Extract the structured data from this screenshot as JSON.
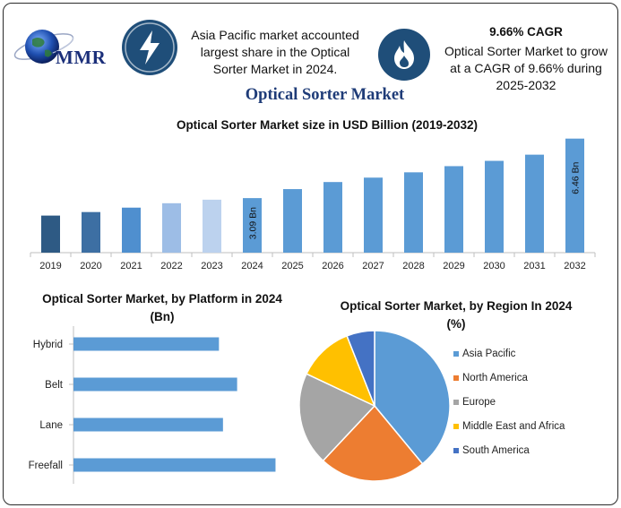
{
  "header": {
    "logo_text": "MMR",
    "share_text": "Asia Pacific market accounted largest share in the Optical Sorter Market in 2024.",
    "cagr_title": "9.66% CAGR",
    "cagr_text": "Optical Sorter Market to grow at a CAGR of 9.66% during 2025-2032",
    "icons": [
      "globe-icon",
      "lightning-icon",
      "flame-icon"
    ],
    "accent_color": "#1f4e79"
  },
  "main_title": "Optical Sorter Market",
  "chart_data": [
    {
      "type": "bar",
      "title": "Optical Sorter Market size in USD Billion (2019-2032)",
      "categories": [
        "2019",
        "2020",
        "2021",
        "2022",
        "2023",
        "2024",
        "2025",
        "2026",
        "2027",
        "2028",
        "2029",
        "2030",
        "2031",
        "2032"
      ],
      "values": [
        2.1,
        2.3,
        2.55,
        2.8,
        3.0,
        3.09,
        3.6,
        4.0,
        4.25,
        4.55,
        4.9,
        5.2,
        5.55,
        6.46
      ],
      "colors": [
        "#2e5a84",
        "#3d6fa3",
        "#4f8fcf",
        "#9dbde6",
        "#bcd2ee",
        "#5b9bd5",
        "#5b9bd5",
        "#5b9bd5",
        "#5b9bd5",
        "#5b9bd5",
        "#5b9bd5",
        "#5b9bd5",
        "#5b9bd5",
        "#5b9bd5"
      ],
      "data_labels": [
        {
          "index": 5,
          "text": "3.09 Bn"
        },
        {
          "index": 13,
          "text": "6.46 Bn"
        }
      ],
      "ylim": [
        0,
        6.8
      ],
      "grid": false
    },
    {
      "type": "bar",
      "orientation": "horizontal",
      "title": "Optical Sorter Market, by Platform in 2024 (Bn)",
      "categories": [
        "Hybrid",
        "Belt",
        "Lane",
        "Freefall"
      ],
      "values": [
        0.72,
        0.81,
        0.74,
        1.0
      ],
      "xlim": [
        0,
        1.1
      ],
      "color": "#5b9bd5"
    },
    {
      "type": "pie",
      "title": "Optical Sorter Market, by Region In 2024 (%)",
      "labels": [
        "Asia Pacific",
        "North America",
        "Europe",
        "Middle East and Africa",
        "South America"
      ],
      "values": [
        39,
        23,
        20,
        12,
        6
      ],
      "colors": [
        "#5b9bd5",
        "#ed7d31",
        "#a5a5a5",
        "#ffc000",
        "#4472c4"
      ],
      "legend": "right"
    }
  ]
}
